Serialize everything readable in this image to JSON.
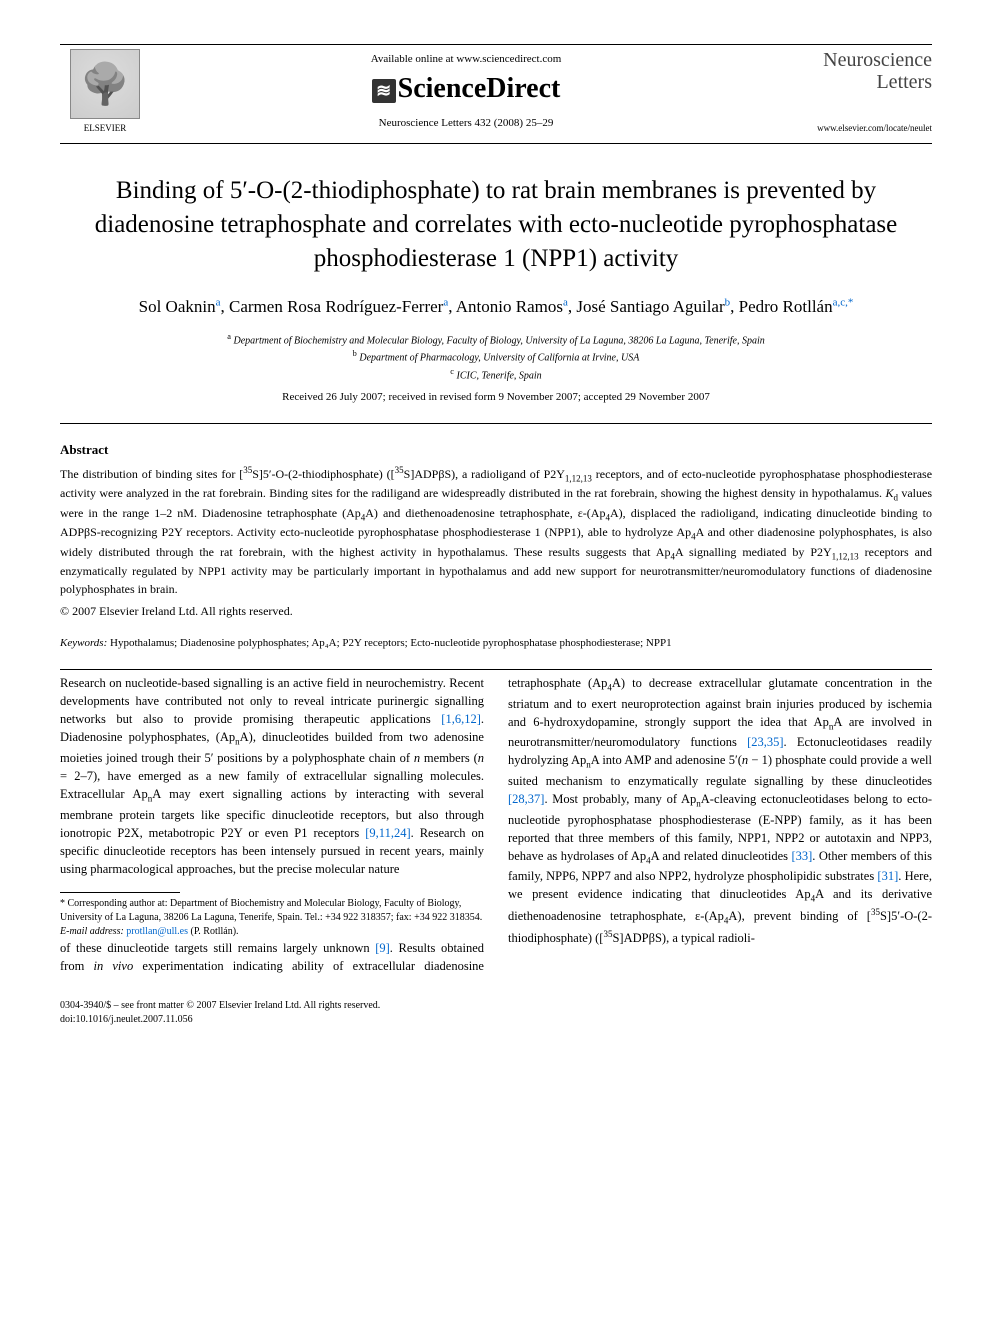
{
  "header": {
    "elsevier_label": "ELSEVIER",
    "available_online": "Available online at www.sciencedirect.com",
    "sciencedirect": "ScienceDirect",
    "journal_reference": "Neuroscience Letters 432 (2008) 25–29",
    "journal_name_line1": "Neuroscience",
    "journal_name_line2": "Letters",
    "journal_site": "www.elsevier.com/locate/neulet"
  },
  "article": {
    "title": "Binding of 5′-O-(2-thiodiphosphate) to rat brain membranes is prevented by diadenosine tetraphosphate and correlates with ecto-nucleotide pyrophosphatase phosphodiesterase 1 (NPP1) activity",
    "authors_html": "Sol Oaknin<sup><a>a</a></sup>, Carmen Rosa Rodríguez-Ferrer<sup><a>a</a></sup>, Antonio Ramos<sup><a>a</a></sup>, José Santiago Aguilar<sup><a>b</a></sup>, Pedro Rotllán<sup><a>a,c,*</a></sup>",
    "affiliations": {
      "a": "Department of Biochemistry and Molecular Biology, Faculty of Biology, University of La Laguna, 38206 La Laguna, Tenerife, Spain",
      "b": "Department of Pharmacology, University of California at Irvine, USA",
      "c": "ICIC, Tenerife, Spain"
    },
    "dates": "Received 26 July 2007; received in revised form 9 November 2007; accepted 29 November 2007"
  },
  "abstract": {
    "heading": "Abstract",
    "text": "The distribution of binding sites for [³⁵S]5′-O-(2-thiodiphosphate) ([³⁵S]ADPβS), a radioligand of P2Y₁,₁₂,₁₃ receptors, and of ecto-nucleotide pyrophosphatase phosphodiesterase activity were analyzed in the rat forebrain. Binding sites for the radiligand are widespreadly distributed in the rat forebrain, showing the highest density in hypothalamus. K_d values were in the range 1–2 nM. Diadenosine tetraphosphate (Ap₄A) and diethenoadenosine tetraphosphate, ε-(Ap₄A), displaced the radioligand, indicating dinucleotide binding to ADPβS-recognizing P2Y receptors. Activity ecto-nucleotide pyrophosphatase phosphodiesterase 1 (NPP1), able to hydrolyze Ap₄A and other diadenosine polyphosphates, is also widely distributed through the rat forebrain, with the highest activity in hypothalamus. These results suggests that Ap₄A signalling mediated by P2Y₁,₁₂,₁₃ receptors and enzymatically regulated by NPP1 activity may be particularly important in hypothalamus and add new support for neurotransmitter/neuromodulatory functions of diadenosine polyphosphates in brain.",
    "copyright": "© 2007 Elsevier Ireland Ltd. All rights reserved."
  },
  "keywords": {
    "label": "Keywords:",
    "text": "Hypothalamus; Diadenosine polyphosphates; Ap₄A; P2Y receptors; Ecto-nucleotide pyrophosphatase phosphodiesterase; NPP1"
  },
  "body": {
    "para1": "Research on nucleotide-based signalling is an active field in neurochemistry. Recent developments have contributed not only to reveal intricate purinergic signalling networks but also to provide promising therapeutic applications [1,6,12]. Diadenosine polyphosphates, (ApₙA), dinucleotides builded from two adenosine moieties joined trough their 5′ positions by a polyphosphate chain of n members (n = 2–7), have emerged as a new family of extracellular signalling molecules. Extracellular ApₙA may exert signalling actions by interacting with several membrane protein targets like specific dinucleotide receptors, but also through ionotropic P2X, metabotropic P2Y or even P1 receptors [9,11,24]. Research on specific dinucleotide receptors has been intensely pursued in recent years, mainly using pharmacological approaches, but the precise molecular nature",
    "para2": "of these dinucleotide targets still remains largely unknown [9]. Results obtained from in vivo experimentation indicating ability of extracellular diadenosine tetraphosphate (Ap₄A) to decrease extracellular glutamate concentration in the striatum and to exert neuroprotection against brain injuries produced by ischemia and 6-hydroxydopamine, strongly support the idea that ApₙA are involved in neurotransmitter/neuromodulatory functions [23,35]. Ectonucleotidases readily hydrolyzing ApₙA into AMP and adenosine 5′(n − 1) phosphate could provide a well suited mechanism to enzymatically regulate signalling by these dinucleotides [28,37]. Most probably, many of ApₙA-cleaving ectonucleotidases belong to ecto-nucleotide pyrophosphatase phosphodiesterase (E-NPP) family, as it has been reported that three members of this family, NPP1, NPP2 or autotaxin and NPP3, behave as hydrolases of Ap₄A and related dinucleotides [33]. Other members of this family, NPP6, NPP7 and also NPP2, hydrolyze phospholipidic substrates [31]. Here, we present evidence indicating that dinucleotides Ap₄A and its derivative diethenoadenosine tetraphosphate, ε-(Ap₄A), prevent binding of [³⁵S]5′-O-(2-thiodiphosphate) ([³⁵S]ADPβS), a typical radioli-"
  },
  "footnote": {
    "corresponding": "* Corresponding author at: Department of Biochemistry and Molecular Biology, Faculty of Biology, University of La Laguna, 38206 La Laguna, Tenerife, Spain. Tel.: +34 922 318357; fax: +34 922 318354.",
    "email_label": "E-mail address:",
    "email": "protllan@ull.es",
    "email_person": "(P. Rotllán)."
  },
  "footer": {
    "line1": "0304-3940/$ – see front matter © 2007 Elsevier Ireland Ltd. All rights reserved.",
    "line2": "doi:10.1016/j.neulet.2007.11.056"
  },
  "refs": {
    "r1": "[1,6,12]",
    "r2": "[9,11,24]",
    "r3": "[9]",
    "r4": "[23,35]",
    "r5": "[28,37]",
    "r6": "[33]",
    "r7": "[31]"
  },
  "colors": {
    "link": "#0066cc",
    "text": "#000000",
    "bg": "#ffffff"
  }
}
